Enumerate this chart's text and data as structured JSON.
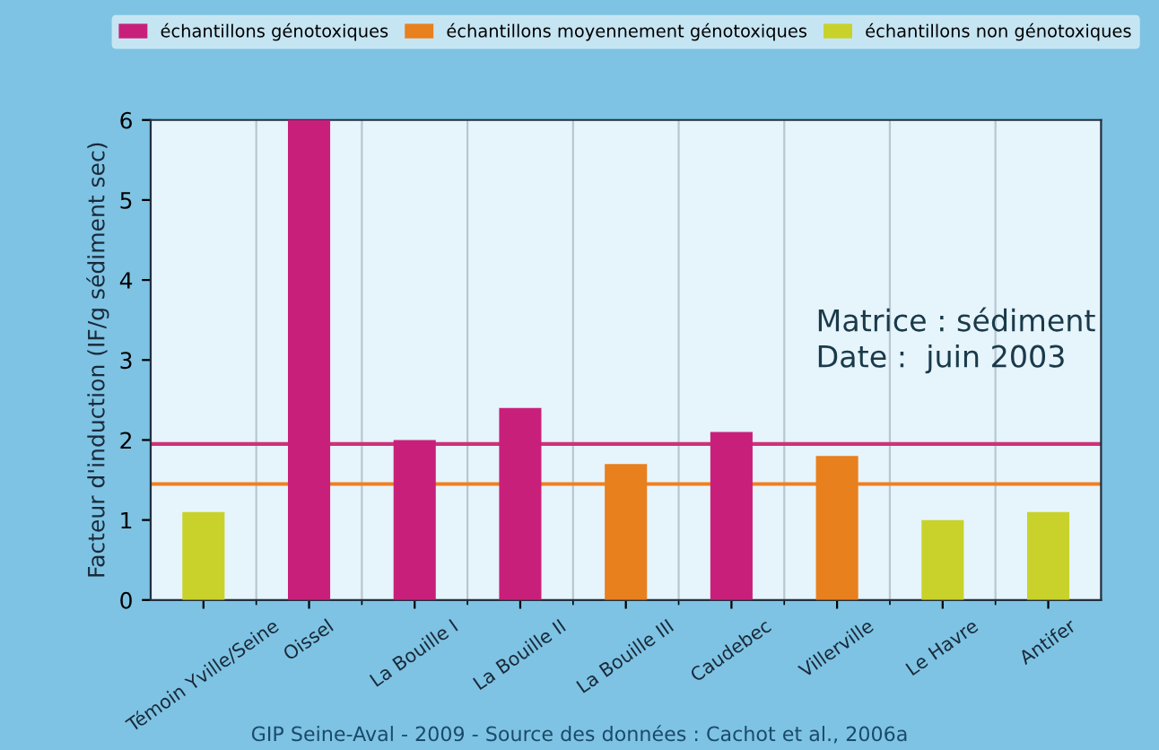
{
  "chart_data": {
    "type": "bar",
    "ylabel": "Facteur d'induction (IF/g sédiment sec)",
    "categories": [
      "Témoin Yville/Seine",
      "Oissel",
      "La Bouille I",
      "La Bouille II",
      "La Bouille III",
      "Caudebec",
      "Villerville",
      "Le Havre",
      "Antifer"
    ],
    "series": [
      {
        "name": "échantillons génotoxiques",
        "color": "#c8207a",
        "values": [
          null,
          6,
          2.0,
          2.4,
          null,
          2.1,
          null,
          null,
          null
        ]
      },
      {
        "name": "échantillons moyennement génotoxiques",
        "color": "#e8801e",
        "values": [
          null,
          null,
          null,
          null,
          1.7,
          null,
          1.8,
          null,
          null
        ]
      },
      {
        "name": "échantillons non génotoxiques",
        "color": "#c8d22a",
        "values": [
          1.1,
          null,
          null,
          null,
          null,
          null,
          null,
          1.0,
          1.1
        ]
      }
    ],
    "ylim": [
      0,
      6
    ],
    "yticks": [
      0,
      1,
      2,
      3,
      4,
      5,
      6
    ],
    "grid": "x",
    "legend": "top",
    "ref_lines": [
      {
        "axis": "y",
        "value": 1.95,
        "color": "#d0307a"
      },
      {
        "axis": "y",
        "value": 1.45,
        "color": "#f08020"
      }
    ],
    "annotations": [
      "Matrice : sédiment",
      "Date :  juin 2003",
      "GIP Seine-Aval - 2009 - Source des données : Cachot et al., 2006a"
    ]
  }
}
